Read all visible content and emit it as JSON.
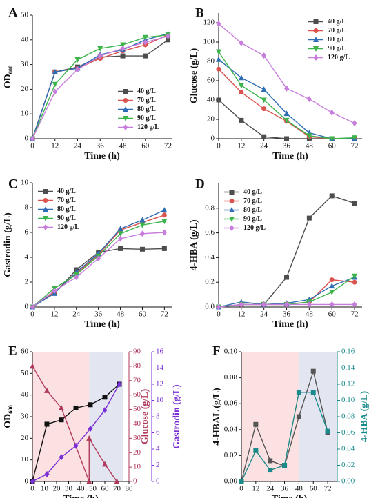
{
  "chart_data": [
    {
      "type": "line",
      "panel_label": "A",
      "xlabel": "Time (h)",
      "ylabel": "OD₆₀₀",
      "legend": "lower right",
      "x": [
        0,
        12,
        24,
        36,
        48,
        60,
        72
      ],
      "xlim": [
        0,
        74
      ],
      "xticks": [
        0,
        12,
        24,
        36,
        48,
        60,
        72
      ],
      "ylim": [
        0,
        50
      ],
      "yticks": [
        0,
        10,
        20,
        30,
        40,
        50
      ],
      "series": [
        {
          "name": "40 g/L",
          "color": "#4d4d4d",
          "marker": "square",
          "values": [
            0,
            27,
            29,
            33,
            33.5,
            33.5,
            40
          ]
        },
        {
          "name": "70 g/L",
          "color": "#d9534f",
          "marker": "circle",
          "values": [
            0,
            27,
            28.5,
            32.5,
            35.5,
            38,
            42
          ]
        },
        {
          "name": "80 g/L",
          "color": "#2e6db4",
          "marker": "triangle-up",
          "values": [
            0,
            27,
            28.5,
            34,
            36,
            40,
            42.5
          ]
        },
        {
          "name": "90 g/L",
          "color": "#3cb44b",
          "marker": "triangle-down",
          "values": [
            0,
            22,
            32,
            36.5,
            38,
            41,
            42
          ]
        },
        {
          "name": "120 g/L",
          "color": "#c77ddc",
          "marker": "diamond",
          "values": [
            0,
            19,
            28,
            33.5,
            36.5,
            39,
            41.5
          ]
        }
      ]
    },
    {
      "type": "line",
      "panel_label": "B",
      "xlabel": "Time (h)",
      "ylabel": "Glucose (g/L)",
      "legend": "upper right",
      "x": [
        0,
        12,
        24,
        36,
        48,
        60,
        72
      ],
      "xlim": [
        0,
        76
      ],
      "xticks": [
        0,
        12,
        24,
        36,
        48,
        60,
        72
      ],
      "ylim": [
        0,
        130
      ],
      "yticks": [
        0,
        20,
        40,
        60,
        80,
        100,
        120
      ],
      "series": [
        {
          "name": "40 g/L",
          "color": "#4d4d4d",
          "marker": "square",
          "values": [
            40,
            19,
            2,
            0,
            0,
            0,
            0
          ]
        },
        {
          "name": "70 g/L",
          "color": "#d9534f",
          "marker": "circle",
          "values": [
            72,
            48,
            31,
            18,
            2,
            0,
            0
          ]
        },
        {
          "name": "80 g/L",
          "color": "#2e6db4",
          "marker": "triangle-up",
          "values": [
            82,
            63,
            51,
            26,
            6,
            0,
            0
          ]
        },
        {
          "name": "90 g/L",
          "color": "#3cb44b",
          "marker": "triangle-down",
          "values": [
            90,
            55,
            40,
            19,
            3,
            0,
            1
          ]
        },
        {
          "name": "120 g/L",
          "color": "#c77ddc",
          "marker": "diamond",
          "values": [
            119,
            99,
            86,
            52,
            41,
            27,
            16
          ]
        }
      ]
    },
    {
      "type": "line",
      "panel_label": "C",
      "xlabel": "Time (h)",
      "ylabel": "Gastrodin (g/L)",
      "legend": "upper left",
      "x": [
        0,
        12,
        24,
        36,
        48,
        60,
        72
      ],
      "xlim": [
        0,
        76
      ],
      "xticks": [
        0,
        12,
        24,
        36,
        48,
        60,
        72
      ],
      "ylim": [
        0,
        10
      ],
      "yticks": [
        0,
        2,
        4,
        6,
        8,
        10
      ],
      "series": [
        {
          "name": "40 g/L",
          "color": "#4d4d4d",
          "marker": "square",
          "values": [
            0,
            1.1,
            3.0,
            4.4,
            4.7,
            4.65,
            4.7
          ]
        },
        {
          "name": "70 g/L",
          "color": "#d9534f",
          "marker": "circle",
          "values": [
            0,
            1.2,
            2.7,
            4.2,
            6.2,
            6.8,
            7.4
          ]
        },
        {
          "name": "80 g/L",
          "color": "#2e6db4",
          "marker": "triangle-up",
          "values": [
            0,
            1.1,
            2.8,
            4.3,
            6.3,
            7.0,
            7.8
          ]
        },
        {
          "name": "90 g/L",
          "color": "#3cb44b",
          "marker": "triangle-down",
          "values": [
            0,
            1.5,
            2.6,
            4.1,
            5.9,
            6.6,
            6.9
          ]
        },
        {
          "name": "120 g/L",
          "color": "#c77ddc",
          "marker": "diamond",
          "values": [
            0,
            1.3,
            2.4,
            3.9,
            5.5,
            5.9,
            6.0
          ]
        }
      ]
    },
    {
      "type": "line",
      "panel_label": "D",
      "xlabel": "Time (h)",
      "ylabel": "4-HBA (g/L)",
      "legend": "upper left",
      "x": [
        0,
        12,
        24,
        36,
        48,
        60,
        72
      ],
      "xlim": [
        0,
        76
      ],
      "xticks": [
        0,
        12,
        24,
        36,
        48,
        60,
        72
      ],
      "ylim": [
        0,
        1.0
      ],
      "yticks": [
        {
          "value": 0,
          "label": "0.0"
        },
        0.2,
        0.4,
        0.6,
        0.8
      ],
      "series": [
        {
          "name": "40 g/L",
          "color": "#4d4d4d",
          "marker": "square",
          "values": [
            0,
            0.02,
            0.02,
            0.24,
            0.72,
            0.9,
            0.84
          ]
        },
        {
          "name": "70 g/L",
          "color": "#d9534f",
          "marker": "circle",
          "values": [
            0,
            0.02,
            0.02,
            0.02,
            0.04,
            0.22,
            0.2
          ]
        },
        {
          "name": "80 g/L",
          "color": "#2e6db4",
          "marker": "triangle-up",
          "values": [
            0,
            0.04,
            0.02,
            0.03,
            0.06,
            0.17,
            0.24
          ]
        },
        {
          "name": "90 g/L",
          "color": "#3cb44b",
          "marker": "triangle-down",
          "values": [
            0,
            0.02,
            0.02,
            0.02,
            0.04,
            0.12,
            0.25
          ]
        },
        {
          "name": "120 g/L",
          "color": "#c77ddc",
          "marker": "diamond",
          "values": [
            0,
            0.02,
            0.02,
            0.02,
            0.02,
            0.02,
            0.02
          ]
        }
      ]
    },
    {
      "type": "line",
      "panel_label": "E",
      "xlabel": "Time (h)",
      "ylabel": "OD₆₀₀",
      "y2label": "Glucose (g/L)",
      "y3label": "Gastrodin (g/L)",
      "x": [
        0,
        12,
        24,
        36,
        48,
        60,
        72
      ],
      "xlim": [
        0,
        80
      ],
      "xticks": [
        0,
        10,
        20,
        30,
        40,
        50,
        60,
        70,
        80
      ],
      "ylim": [
        0,
        60
      ],
      "yticks": [
        0,
        10,
        20,
        30,
        40,
        50,
        60
      ],
      "y2lim": [
        0,
        90
      ],
      "y2ticks": [
        0,
        10,
        20,
        30,
        40,
        50,
        60,
        70,
        80,
        90
      ],
      "y3lim": [
        0,
        16
      ],
      "y3ticks": [
        0,
        2,
        4,
        6,
        8,
        10,
        12,
        14,
        16
      ],
      "shaded_regions": [
        {
          "x": [
            0,
            47
          ],
          "color": "#fbe1e1"
        },
        {
          "x": [
            47,
            75
          ],
          "color": "#e3e6f1"
        }
      ],
      "series": [
        {
          "name": "OD",
          "color": "#111111",
          "marker": "square",
          "values": [
            0,
            26.5,
            28.5,
            34,
            35.5,
            39,
            45
          ]
        },
        {
          "name": "Glucose",
          "color": "#b03a5b",
          "marker": "triangle-up",
          "axis": "y2",
          "x": [
            0,
            12,
            24,
            47,
            47,
            60,
            70
          ],
          "values": [
            80,
            63,
            51,
            0,
            30,
            12,
            0
          ]
        },
        {
          "name": "Gastrodin",
          "color": "#7b2fd6",
          "marker": "diamond",
          "axis": "y3",
          "values": [
            0,
            0.9,
            3,
            4.4,
            6.5,
            8.8,
            12
          ]
        }
      ]
    },
    {
      "type": "line",
      "panel_label": "F",
      "xlabel": "Time (h)",
      "ylabel": "4-HBAL (g/L)",
      "y2label": "4-HBA (g/L)",
      "x": [
        0,
        12,
        24,
        36,
        48,
        60,
        72
      ],
      "xlim": [
        0,
        80
      ],
      "xticks": [
        0,
        12,
        24,
        36,
        48,
        60,
        72
      ],
      "ylim": [
        0,
        0.1
      ],
      "yticks": [
        {
          "value": 0,
          "label": "0.00"
        },
        0.02,
        0.04,
        0.06,
        0.08,
        {
          "value": 0.1,
          "label": "0.10"
        }
      ],
      "y2lim": [
        0,
        0.16
      ],
      "y2ticks": [
        {
          "value": 0,
          "label": "0.00"
        },
        0.02,
        0.04,
        0.06,
        0.08,
        {
          "value": 0.1,
          "label": "0.10"
        },
        0.12,
        0.14,
        0.16
      ],
      "shaded_regions": [
        {
          "x": [
            0,
            48
          ],
          "color": "#fbe1e1"
        },
        {
          "x": [
            48,
            80
          ],
          "color": "#e3e6f1"
        }
      ],
      "series": [
        {
          "name": "4-HBAL",
          "color": "#555555",
          "marker": "square",
          "values": [
            0,
            0.044,
            0.016,
            0.012,
            0.05,
            0.085,
            0.038
          ]
        },
        {
          "name": "4-HBA",
          "color": "#1a8a8a",
          "marker": "square",
          "axis": "y2",
          "values": [
            0,
            0.038,
            0.014,
            0.02,
            0.11,
            0.11,
            0.062
          ]
        }
      ]
    }
  ]
}
